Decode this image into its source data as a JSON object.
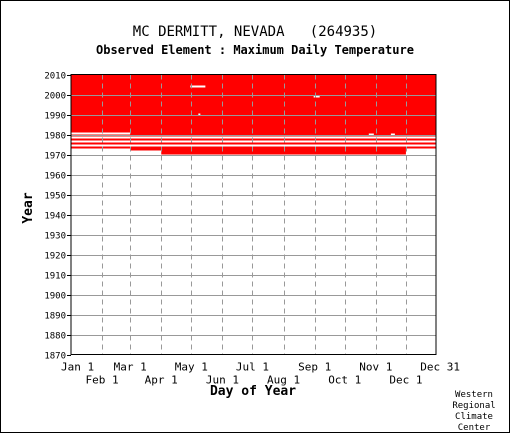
{
  "chart_data": {
    "type": "heatmap",
    "title": "MC DERMITT, NEVADA   (264935)",
    "subtitle": "Observed Element : Maximum Daily Temperature",
    "xlabel": "Day of Year",
    "ylabel": "Year",
    "xlim": [
      1,
      365
    ],
    "ylim": [
      1870,
      2010
    ],
    "x_ticks_top_row": [
      {
        "label": "Jan 1",
        "day": 1
      },
      {
        "label": "Mar 1",
        "day": 60
      },
      {
        "label": "May 1",
        "day": 121
      },
      {
        "label": "Jul 1",
        "day": 182
      },
      {
        "label": "Sep 1",
        "day": 244
      },
      {
        "label": "Nov 1",
        "day": 305
      },
      {
        "label": "Dec 31",
        "day": 365
      }
    ],
    "x_ticks_bottom_row": [
      {
        "label": "Feb 1",
        "day": 32
      },
      {
        "label": "Apr 1",
        "day": 91
      },
      {
        "label": "Jun 1",
        "day": 152
      },
      {
        "label": "Aug 1",
        "day": 213
      },
      {
        "label": "Oct 1",
        "day": 274
      },
      {
        "label": "Dec 1",
        "day": 335
      }
    ],
    "y_ticks": [
      1870,
      1880,
      1890,
      1900,
      1910,
      1920,
      1930,
      1940,
      1950,
      1960,
      1970,
      1980,
      1990,
      2000,
      2010
    ],
    "grid": true,
    "legend": "none",
    "series": [
      {
        "color": "#ff0000",
        "observed_blocks": [
          {
            "days": [
              1,
              365
            ],
            "years": [
              1981,
              2010
            ]
          },
          {
            "days": [
              60,
              365
            ],
            "years": [
              1980,
              1981
            ]
          },
          {
            "days": [
              1,
              365
            ],
            "years": [
              1979,
              1980
            ]
          },
          {
            "days": [
              1,
              365
            ],
            "years": [
              1977,
              1978
            ]
          },
          {
            "days": [
              1,
              365
            ],
            "years": [
              1975,
              1976
            ]
          },
          {
            "days": [
              1,
              365
            ],
            "years": [
              1973,
              1974
            ]
          },
          {
            "days": [
              60,
              335
            ],
            "years": [
              1972,
              1973
            ]
          },
          {
            "days": [
              91,
              335
            ],
            "years": [
              1971,
              1972
            ]
          },
          {
            "days": [
              91,
              335
            ],
            "years": [
              1970,
              1971
            ]
          }
        ],
        "missing_marks": [
          {
            "day": 120,
            "year": 2004,
            "length_days": 15
          },
          {
            "day": 243,
            "year": 1999,
            "length_days": 6
          },
          {
            "day": 128,
            "year": 1990,
            "length_days": 2
          },
          {
            "day": 298,
            "year": 1980,
            "length_days": 5
          },
          {
            "day": 320,
            "year": 1980,
            "length_days": 4
          }
        ]
      }
    ]
  },
  "credit_lines": [
    "Western",
    "Regional",
    "Climate",
    "Center"
  ]
}
